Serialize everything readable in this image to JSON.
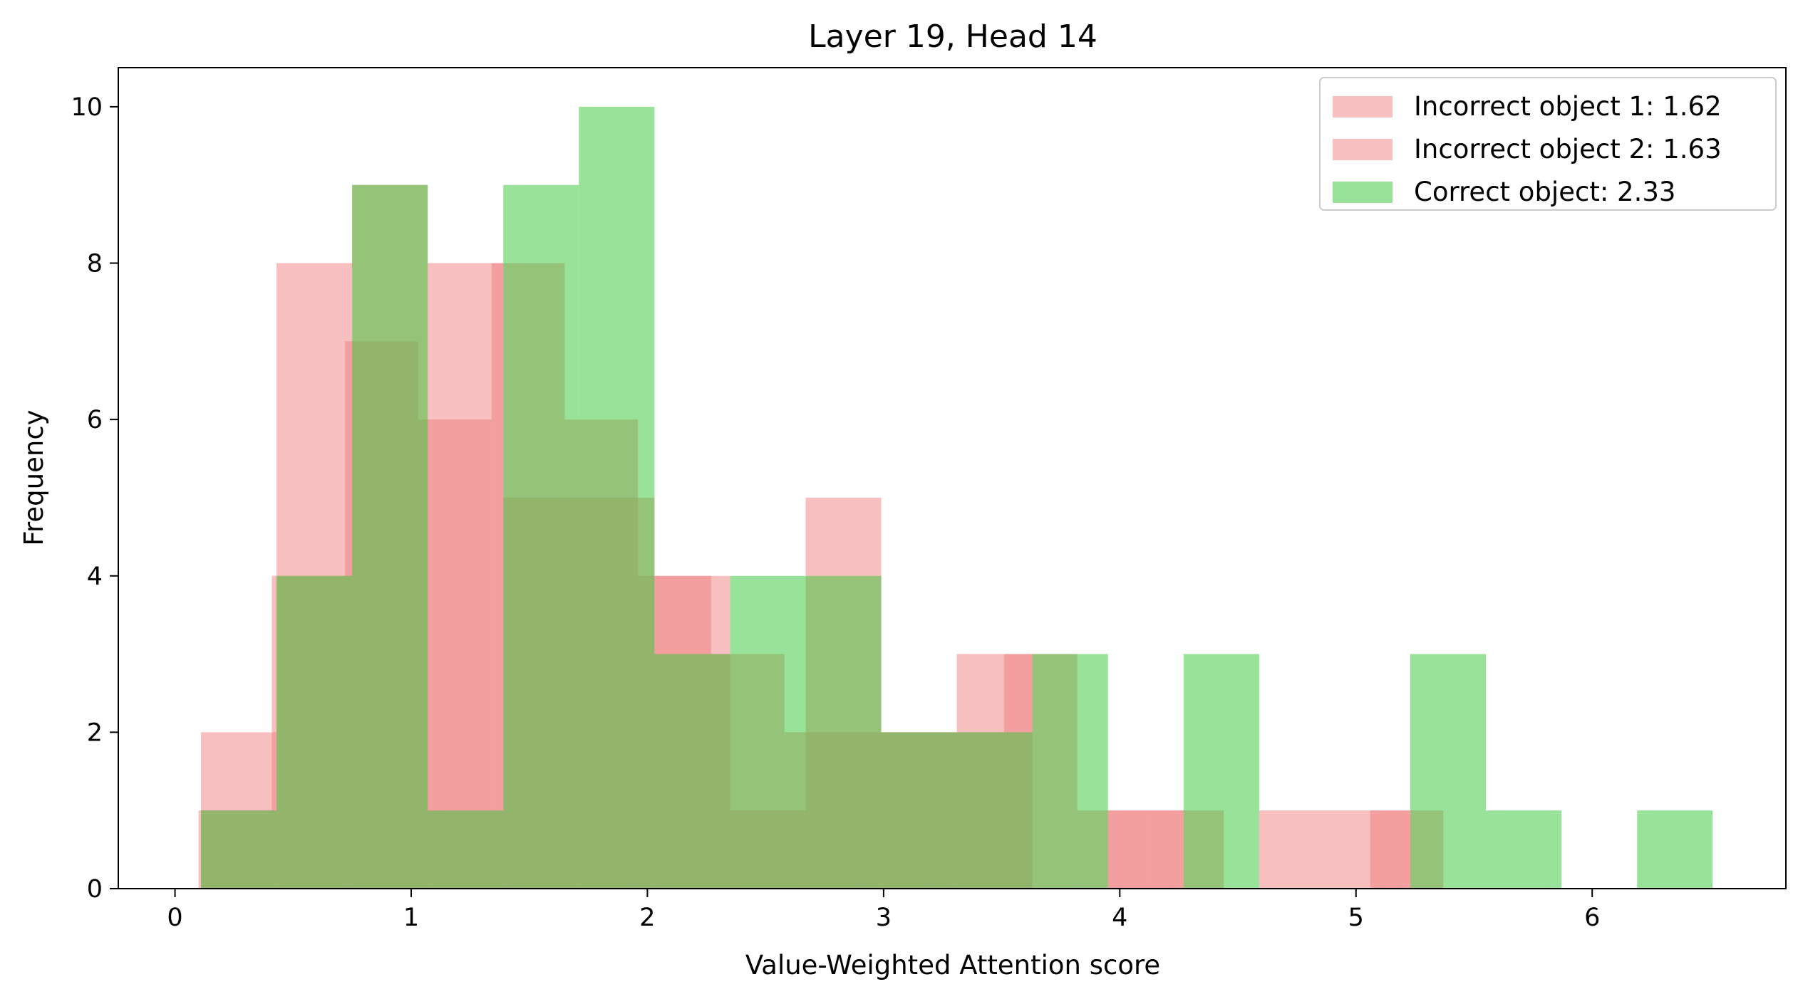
{
  "chart_data": {
    "type": "bar",
    "subtype": "overlapping-histogram",
    "title": "Layer 19, Head 14",
    "xlabel": "Value-Weighted Attention score",
    "ylabel": "Frequency",
    "xlim": [
      -0.24,
      6.82
    ],
    "ylim": [
      0,
      10.5
    ],
    "xticks": [
      0,
      1,
      2,
      3,
      4,
      5,
      6
    ],
    "yticks": [
      0,
      2,
      4,
      6,
      8,
      10
    ],
    "grid": false,
    "legend_position": "top-right",
    "series": [
      {
        "name": "Incorrect object 1: 1.62",
        "color": "#f08080",
        "opacity": 0.5,
        "bins": [
          {
            "x0": 0.11,
            "x1": 0.43,
            "count": 2
          },
          {
            "x0": 0.43,
            "x1": 0.75,
            "count": 8
          },
          {
            "x0": 0.75,
            "x1": 1.07,
            "count": 9
          },
          {
            "x0": 1.07,
            "x1": 1.39,
            "count": 8
          },
          {
            "x0": 1.39,
            "x1": 1.71,
            "count": 5
          },
          {
            "x0": 1.71,
            "x1": 2.03,
            "count": 5
          },
          {
            "x0": 2.03,
            "x1": 2.35,
            "count": 4
          },
          {
            "x0": 2.35,
            "x1": 2.67,
            "count": 1
          },
          {
            "x0": 2.67,
            "x1": 2.99,
            "count": 5
          },
          {
            "x0": 2.99,
            "x1": 3.31,
            "count": 2
          },
          {
            "x0": 3.31,
            "x1": 3.63,
            "count": 3
          },
          {
            "x0": 3.63,
            "x1": 3.95,
            "count": 0
          },
          {
            "x0": 3.95,
            "x1": 4.27,
            "count": 1
          },
          {
            "x0": 4.27,
            "x1": 4.59,
            "count": 0
          },
          {
            "x0": 4.59,
            "x1": 4.91,
            "count": 1
          },
          {
            "x0": 4.91,
            "x1": 5.23,
            "count": 1
          }
        ]
      },
      {
        "name": "Incorrect object 2: 1.63",
        "color": "#f08080",
        "opacity": 0.5,
        "bins": [
          {
            "x0": 0.1,
            "x1": 0.41,
            "count": 1
          },
          {
            "x0": 0.41,
            "x1": 0.72,
            "count": 4
          },
          {
            "x0": 0.72,
            "x1": 1.03,
            "count": 7
          },
          {
            "x0": 1.03,
            "x1": 1.34,
            "count": 6
          },
          {
            "x0": 1.34,
            "x1": 1.65,
            "count": 8
          },
          {
            "x0": 1.65,
            "x1": 1.96,
            "count": 6
          },
          {
            "x0": 1.96,
            "x1": 2.27,
            "count": 4
          },
          {
            "x0": 2.27,
            "x1": 2.58,
            "count": 3
          },
          {
            "x0": 2.58,
            "x1": 2.89,
            "count": 2
          },
          {
            "x0": 2.89,
            "x1": 3.2,
            "count": 2
          },
          {
            "x0": 3.2,
            "x1": 3.51,
            "count": 2
          },
          {
            "x0": 3.51,
            "x1": 3.82,
            "count": 3
          },
          {
            "x0": 3.82,
            "x1": 4.13,
            "count": 1
          },
          {
            "x0": 4.13,
            "x1": 4.44,
            "count": 1
          },
          {
            "x0": 4.44,
            "x1": 4.75,
            "count": 0
          },
          {
            "x0": 4.75,
            "x1": 5.06,
            "count": 0
          },
          {
            "x0": 5.06,
            "x1": 5.37,
            "count": 1
          }
        ]
      },
      {
        "name": "Correct object: 2.33",
        "color": "#3cc83c",
        "opacity": 0.52,
        "bins": [
          {
            "x0": 0.11,
            "x1": 0.43,
            "count": 1
          },
          {
            "x0": 0.43,
            "x1": 0.75,
            "count": 4
          },
          {
            "x0": 0.75,
            "x1": 1.07,
            "count": 9
          },
          {
            "x0": 1.07,
            "x1": 1.39,
            "count": 1
          },
          {
            "x0": 1.39,
            "x1": 1.71,
            "count": 9
          },
          {
            "x0": 1.71,
            "x1": 2.03,
            "count": 10
          },
          {
            "x0": 2.03,
            "x1": 2.35,
            "count": 3
          },
          {
            "x0": 2.35,
            "x1": 2.67,
            "count": 4
          },
          {
            "x0": 2.67,
            "x1": 2.99,
            "count": 4
          },
          {
            "x0": 2.99,
            "x1": 3.31,
            "count": 2
          },
          {
            "x0": 3.31,
            "x1": 3.63,
            "count": 2
          },
          {
            "x0": 3.63,
            "x1": 3.95,
            "count": 3
          },
          {
            "x0": 3.95,
            "x1": 4.27,
            "count": 0
          },
          {
            "x0": 4.27,
            "x1": 4.59,
            "count": 3
          },
          {
            "x0": 4.59,
            "x1": 4.91,
            "count": 0
          },
          {
            "x0": 4.91,
            "x1": 5.23,
            "count": 0
          },
          {
            "x0": 5.23,
            "x1": 5.55,
            "count": 3
          },
          {
            "x0": 5.55,
            "x1": 5.87,
            "count": 1
          },
          {
            "x0": 5.87,
            "x1": 6.19,
            "count": 0
          },
          {
            "x0": 6.19,
            "x1": 6.51,
            "count": 1
          }
        ]
      }
    ]
  }
}
